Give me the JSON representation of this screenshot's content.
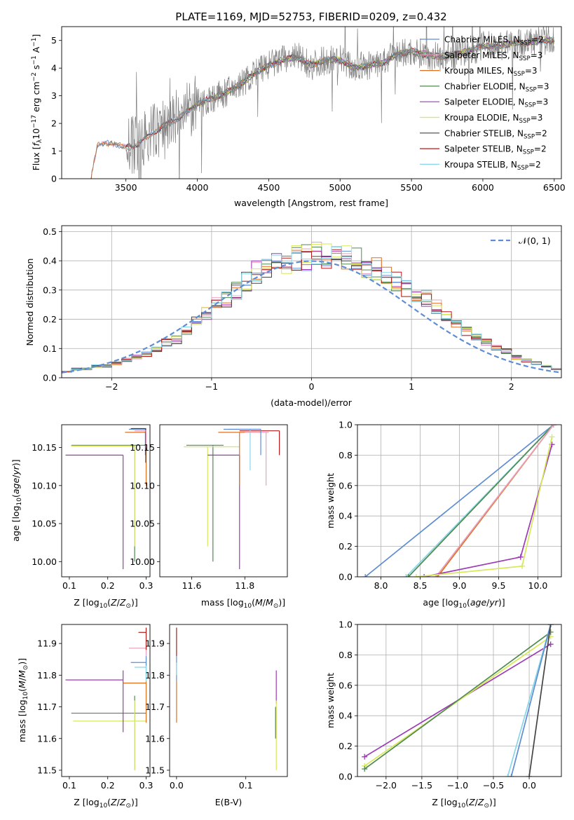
{
  "title": "PLATE=1169, MJD=52753, FIBERID=0209, z=0.432",
  "colors": {
    "Chabrier MILES": "#5f8dd3",
    "Salpeter MILES": "#e8a0c0",
    "Kroupa MILES": "#e06f20",
    "Chabrier ELODIE": "#4f8a4f",
    "Salpeter ELODIE": "#9d3ab5",
    "Kroupa ELODIE": "#d7e85a",
    "Chabrier STELIB": "#444444",
    "Salpeter STELIB": "#b31b1b",
    "Kroupa STELIB": "#88d6e8",
    "data": "#808080",
    "normal": "#5f8dd3"
  },
  "chart_data": [
    {
      "type": "line",
      "title": "PLATE=1169, MJD=52753, FIBERID=0209, z=0.432",
      "xlabel": "wavelength [Angstrom, rest frame]",
      "ylabel": "Flux [f_λ 10^-17 erg cm^-2 s^-1 A^-1]",
      "xlim": [
        3050,
        6550
      ],
      "ylim": [
        0,
        5.5
      ],
      "xticks": [
        "3500",
        "4000",
        "4500",
        "5000",
        "5500",
        "6000",
        "6500"
      ],
      "yticks": [
        "0",
        "1",
        "2",
        "3",
        "4",
        "5"
      ],
      "legend_placement": "right",
      "legend": [
        "Chabrier MILES, N_SSP=2",
        "Salpeter MILES, N_SSP=3",
        "Kroupa MILES, N_SSP=3",
        "Chabrier ELODIE, N_SSP=3",
        "Salpeter ELODIE, N_SSP=3",
        "Kroupa ELODIE, N_SSP=3",
        "Chabrier STELIB, N_SSP=2",
        "Salpeter STELIB, N_SSP=2",
        "Kroupa STELIB, N_SSP=2"
      ],
      "continuum": {
        "x": [
          3250,
          3300,
          3400,
          3500,
          3600,
          3700,
          3800,
          3900,
          4000,
          4100,
          4200,
          4300,
          4400,
          4500,
          4600,
          4700,
          4800,
          4900,
          5000,
          5100,
          5200,
          5300,
          5400,
          5500,
          5600,
          5700,
          5800,
          5900,
          6000,
          6100,
          6200,
          6300,
          6400,
          6500
        ],
        "y": [
          0,
          1.2,
          1.3,
          1.1,
          1.3,
          1.7,
          2.0,
          2.3,
          2.7,
          2.9,
          3.1,
          3.4,
          3.8,
          4.1,
          4.3,
          4.4,
          4.1,
          4.3,
          4.3,
          4.0,
          4.1,
          4.2,
          4.5,
          4.6,
          4.5,
          4.4,
          4.5,
          4.6,
          4.8,
          4.8,
          4.9,
          4.9,
          5.0,
          5.0
        ]
      }
    },
    {
      "type": "bar",
      "ylabel": "Normed distribution",
      "xlabel": "(data-model)/error",
      "xlim": [
        -2.5,
        2.5
      ],
      "ylim": [
        0,
        0.52
      ],
      "xticks": [
        "−2",
        "−1",
        "0",
        "1",
        "2"
      ],
      "yticks": [
        "0.0",
        "0.1",
        "0.2",
        "0.3",
        "0.4",
        "0.5"
      ],
      "legend": [
        "𝒩(0, 1)"
      ],
      "legend_placement": "top-right",
      "bin_width": 0.1,
      "hist_centers": [
        -2.45,
        -2.35,
        -2.25,
        -2.15,
        -2.05,
        -1.95,
        -1.85,
        -1.75,
        -1.65,
        -1.55,
        -1.45,
        -1.35,
        -1.25,
        -1.15,
        -1.05,
        -0.95,
        -0.85,
        -0.75,
        -0.65,
        -0.55,
        -0.45,
        -0.35,
        -0.25,
        -0.15,
        -0.05,
        0.05,
        0.15,
        0.25,
        0.35,
        0.45,
        0.55,
        0.65,
        0.75,
        0.85,
        0.95,
        1.05,
        1.15,
        1.25,
        1.35,
        1.45,
        1.55,
        1.65,
        1.75,
        1.85,
        1.95,
        2.05,
        2.15,
        2.25,
        2.35,
        2.45
      ],
      "hist_base": [
        0.02,
        0.03,
        0.03,
        0.04,
        0.04,
        0.05,
        0.06,
        0.07,
        0.08,
        0.1,
        0.12,
        0.13,
        0.16,
        0.19,
        0.22,
        0.25,
        0.27,
        0.3,
        0.33,
        0.36,
        0.37,
        0.39,
        0.4,
        0.41,
        0.41,
        0.42,
        0.42,
        0.41,
        0.41,
        0.4,
        0.38,
        0.37,
        0.35,
        0.33,
        0.31,
        0.29,
        0.27,
        0.24,
        0.21,
        0.19,
        0.16,
        0.14,
        0.12,
        0.1,
        0.09,
        0.07,
        0.06,
        0.05,
        0.04,
        0.03
      ]
    },
    {
      "type": "scatter",
      "ylabel": "age  [log10(age/yr)]",
      "xlabel": "Z [log10(Z/Z⊙)]",
      "xlim": [
        0.08,
        0.31
      ],
      "ylim": [
        9.98,
        10.18
      ],
      "xticks": [
        "0.1",
        "0.2",
        "0.3"
      ],
      "yticks": [
        "10.00",
        "10.05",
        "10.10",
        "10.15"
      ]
    },
    {
      "type": "scatter",
      "xlabel": "mass [log10(M/M⊙)]",
      "xlim": [
        11.48,
        11.96
      ],
      "ylim": [
        9.98,
        10.18
      ],
      "xticks": [
        "11.6",
        "11.8"
      ],
      "yticks": [
        "10.00",
        "10.05",
        "10.10",
        "10.15"
      ]
    },
    {
      "type": "line",
      "ylabel": "mass weight",
      "xlabel": "age  [log10(age/yr)]",
      "xlim": [
        7.7,
        10.3
      ],
      "ylim": [
        0,
        1
      ],
      "xticks": [
        "8.0",
        "8.5",
        "9.0",
        "9.5",
        "10.0"
      ],
      "yticks": [
        "0.0",
        "0.2",
        "0.4",
        "0.6",
        "0.8",
        "1.0"
      ],
      "series": [
        {
          "key": "Chabrier MILES",
          "x": [
            7.8,
            10.2
          ],
          "y": [
            0,
            1
          ]
        },
        {
          "key": "Kroupa STELIB",
          "x": [
            8.32,
            10.2
          ],
          "y": [
            0,
            1
          ]
        },
        {
          "key": "Chabrier ELODIE",
          "x": [
            8.35,
            10.2
          ],
          "y": [
            0,
            1
          ]
        },
        {
          "key": "Kroupa MILES",
          "x": [
            8.72,
            10.2
          ],
          "y": [
            0,
            1
          ]
        },
        {
          "key": "Salpeter MILES",
          "x": [
            8.7,
            10.2
          ],
          "y": [
            0,
            1
          ]
        },
        {
          "key": "Salpeter ELODIE",
          "x": [
            8.55,
            9.78,
            10.18
          ],
          "y": [
            0,
            0.13,
            0.87
          ]
        },
        {
          "key": "Kroupa ELODIE",
          "x": [
            8.45,
            9.8,
            10.18
          ],
          "y": [
            0,
            0.07,
            0.92
          ]
        }
      ]
    },
    {
      "type": "scatter",
      "ylabel": "mass [log10(M/M⊙)]",
      "xlabel": "Z [log10(Z/Z⊙)]",
      "xlim": [
        0.08,
        0.31
      ],
      "ylim": [
        11.48,
        11.96
      ],
      "xticks": [
        "0.1",
        "0.2",
        "0.3"
      ],
      "yticks": [
        "11.5",
        "11.6",
        "11.7",
        "11.8",
        "11.9"
      ]
    },
    {
      "type": "scatter",
      "xlabel": "E(B-V)",
      "xlim": [
        -0.01,
        0.16
      ],
      "ylim": [
        11.48,
        11.96
      ],
      "xticks": [
        "0.0",
        "0.1"
      ],
      "yticks": [
        "11.5",
        "11.6",
        "11.7",
        "11.8",
        "11.9"
      ]
    },
    {
      "type": "line",
      "ylabel": "mass weight",
      "xlabel": "Z [log10(Z/Z⊙)]",
      "xlim": [
        -2.4,
        0.45
      ],
      "ylim": [
        0,
        1
      ],
      "xticks": [
        "−2.0",
        "−1.5",
        "−1.0",
        "−0.5",
        "0.0"
      ],
      "yticks": [
        "0.0",
        "0.2",
        "0.4",
        "0.6",
        "0.8",
        "1.0"
      ],
      "series": [
        {
          "key": "Salpeter ELODIE",
          "x": [
            -2.3,
            0.3
          ],
          "y": [
            0.13,
            0.87
          ]
        },
        {
          "key": "Kroupa ELODIE",
          "x": [
            -2.3,
            0.3
          ],
          "y": [
            0.07,
            0.92
          ]
        },
        {
          "key": "Chabrier ELODIE",
          "x": [
            -2.3,
            0.3
          ],
          "y": [
            0.05,
            0.95
          ]
        },
        {
          "key": "Kroupa STELIB",
          "x": [
            -0.3,
            0.3
          ],
          "y": [
            0,
            1
          ]
        },
        {
          "key": "Chabrier MILES",
          "x": [
            -0.25,
            0.3
          ],
          "y": [
            0,
            1
          ]
        },
        {
          "key": "Chabrier STELIB",
          "x": [
            0.0,
            0.3
          ],
          "y": [
            0,
            1
          ]
        }
      ]
    }
  ]
}
